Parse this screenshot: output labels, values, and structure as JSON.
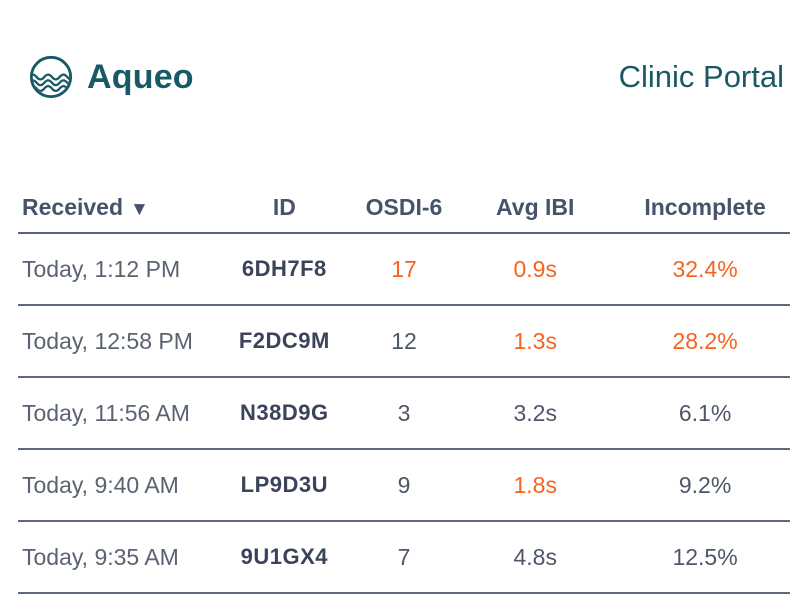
{
  "brand": {
    "name": "Aqueo",
    "portal_title": "Clinic Portal",
    "logo_icon": "waves-circle-icon"
  },
  "colors": {
    "teal": "#175A66",
    "slate_text": "#4D5768",
    "date_text": "#5A6372",
    "id_text": "#3A435A",
    "alert_orange": "#F4641E",
    "divider": "#5D6A7C"
  },
  "table": {
    "columns": [
      {
        "label": "Received",
        "sort_indicator": "▼",
        "sorted": "desc"
      },
      {
        "label": "ID"
      },
      {
        "label": "OSDI-6"
      },
      {
        "label": "Avg IBI"
      },
      {
        "label": "Incomplete"
      }
    ],
    "rows": [
      {
        "received": "Today, 1:12 PM",
        "id": "6DH7F8",
        "osdi6": "17",
        "osdi6_alert": true,
        "avg_ibi": "0.9s",
        "ibi_alert": true,
        "incomplete": "32.4%",
        "incomplete_alert": true
      },
      {
        "received": "Today, 12:58 PM",
        "id": "F2DC9M",
        "osdi6": "12",
        "osdi6_alert": false,
        "avg_ibi": "1.3s",
        "ibi_alert": true,
        "incomplete": "28.2%",
        "incomplete_alert": true
      },
      {
        "received": "Today, 11:56 AM",
        "id": "N38D9G",
        "osdi6": "3",
        "osdi6_alert": false,
        "avg_ibi": "3.2s",
        "ibi_alert": false,
        "incomplete": "6.1%",
        "incomplete_alert": false
      },
      {
        "received": "Today, 9:40 AM",
        "id": "LP9D3U",
        "osdi6": "9",
        "osdi6_alert": false,
        "avg_ibi": "1.8s",
        "ibi_alert": true,
        "incomplete": "9.2%",
        "incomplete_alert": false
      },
      {
        "received": "Today, 9:35 AM",
        "id": "9U1GX4",
        "osdi6": "7",
        "osdi6_alert": false,
        "avg_ibi": "4.8s",
        "ibi_alert": false,
        "incomplete": "12.5%",
        "incomplete_alert": false
      }
    ]
  }
}
